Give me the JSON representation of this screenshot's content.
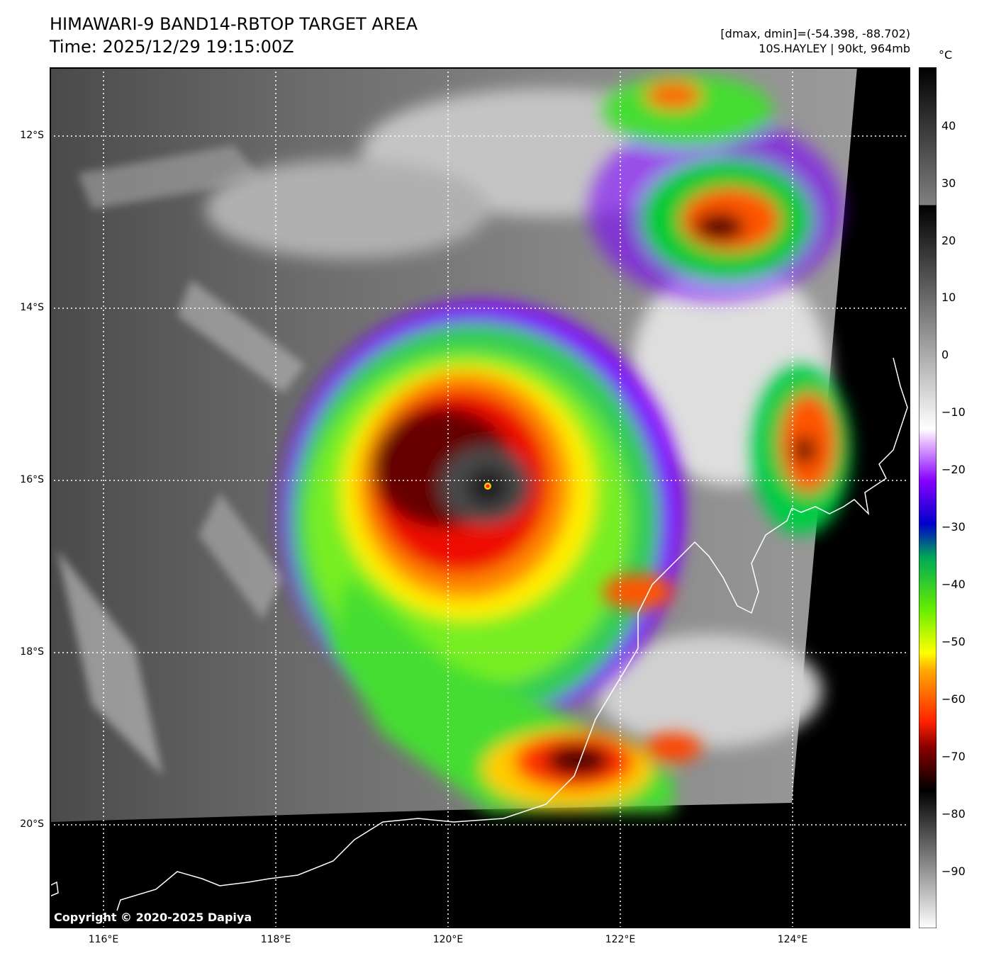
{
  "header": {
    "title": "HIMAWARI-9 BAND14-RBTOP TARGET AREA",
    "time": "Time: 2025/12/29 19:15:00Z",
    "range": "[dmax, dmin]=(-54.398, -88.702)",
    "storm": "10S.HAYLEY | 90kt, 964mb"
  },
  "map": {
    "lat_labels": [
      "12°S",
      "14°S",
      "16°S",
      "18°S",
      "20°S"
    ],
    "lon_labels": [
      "116°E",
      "118°E",
      "120°E",
      "122°E",
      "124°E"
    ],
    "copyright": "Copyright © 2020-2025 Dapiya",
    "eye_center": {
      "lon": "120.5°E",
      "lat": "16.1°S"
    }
  },
  "colorbar": {
    "unit": "°C",
    "ticks": [
      "40",
      "30",
      "20",
      "10",
      "0",
      "−10",
      "−20",
      "−30",
      "−40",
      "−50",
      "−60",
      "−70",
      "−80",
      "−90"
    ]
  }
}
